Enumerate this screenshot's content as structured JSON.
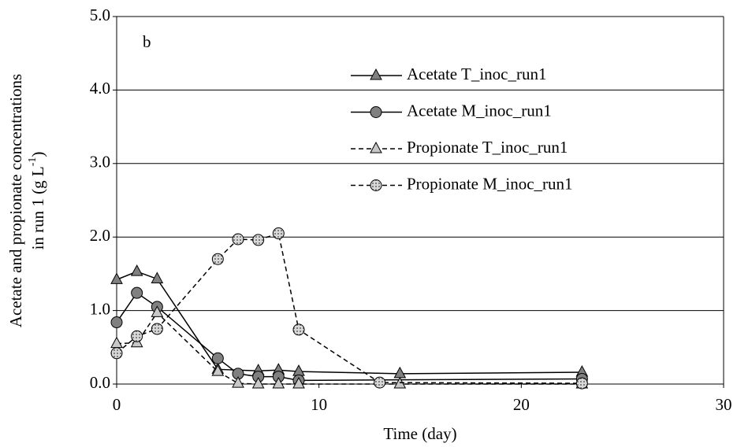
{
  "chart_data": {
    "type": "line",
    "ylabel": {
      "line1": "Acetate and propionate concentrations",
      "line2": "in run 1 (g L",
      "sup": "-1",
      "line2_end": ")"
    },
    "xlabel": "Time (day)",
    "annotation": "b",
    "xlim": [
      0,
      30
    ],
    "xticks": [
      0,
      10,
      20,
      30
    ],
    "ylim": [
      0,
      5
    ],
    "yticks": [
      {
        "value": 0,
        "label": "0.0"
      },
      {
        "value": 1,
        "label": "1.0"
      },
      {
        "value": 2,
        "label": "2.0"
      },
      {
        "value": 3,
        "label": "3.0"
      },
      {
        "value": 4,
        "label": "4.0"
      },
      {
        "value": 5,
        "label": "5.0"
      }
    ],
    "grid": true,
    "series": [
      {
        "name": "Acetate T_inoc_run1",
        "color": "#808080",
        "marker": "triangle",
        "dashed": false,
        "x": [
          0,
          1,
          2,
          5,
          7,
          8,
          9,
          14,
          23
        ],
        "values": [
          1.42,
          1.53,
          1.43,
          0.2,
          0.18,
          0.19,
          0.17,
          0.14,
          0.16
        ]
      },
      {
        "name": "Acetate M_inoc_run1",
        "color": "#808080",
        "marker": "circle",
        "dashed": false,
        "x": [
          0,
          1,
          2,
          5,
          6,
          7,
          8,
          9,
          23
        ],
        "values": [
          0.84,
          1.24,
          1.05,
          0.35,
          0.14,
          0.1,
          0.1,
          0.05,
          0.07
        ]
      },
      {
        "name": "Propionate T_inoc_run1",
        "color": "#c8c8c8",
        "marker": "triangle",
        "dashed": true,
        "x": [
          0,
          1,
          2,
          5,
          6,
          7,
          8,
          9,
          14,
          23
        ],
        "values": [
          0.55,
          0.56,
          0.97,
          0.17,
          0.01,
          0,
          0,
          0,
          0,
          0
        ]
      },
      {
        "name": "Propionate M_inoc_run1",
        "color": "#c0c0c0",
        "marker": "circle",
        "dashed": true,
        "x": [
          0,
          1,
          2,
          5,
          6,
          7,
          8,
          9,
          13,
          23
        ],
        "values": [
          0.42,
          0.65,
          0.75,
          1.7,
          1.97,
          1.96,
          2.05,
          0.74,
          0.02,
          0.01
        ]
      }
    ]
  }
}
